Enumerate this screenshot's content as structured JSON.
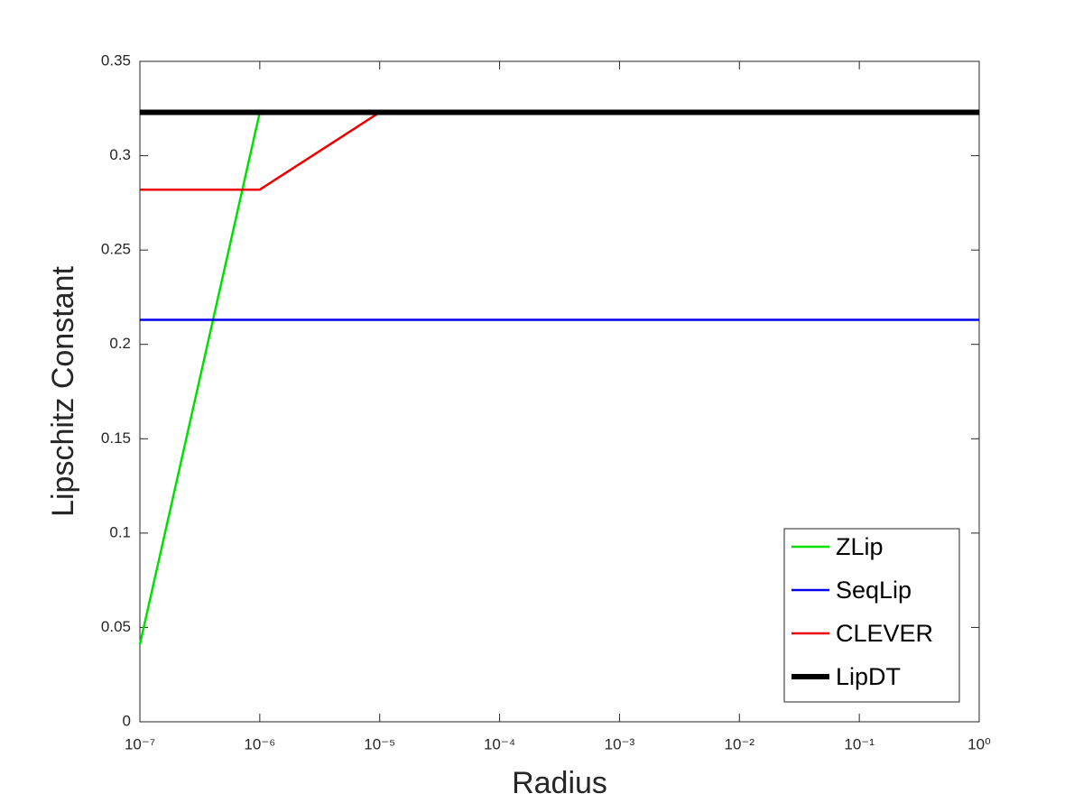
{
  "chart_data": {
    "type": "line",
    "xlabel": "Radius",
    "ylabel": "Lipschitz Constant",
    "xscale": "log",
    "x": [
      1e-07,
      1e-06,
      1e-05,
      0.0001,
      0.001,
      0.01,
      0.1,
      1
    ],
    "series": [
      {
        "name": "ZLip",
        "color": "#00e000",
        "width": 2.5,
        "values": [
          0.041,
          0.323,
          0.323,
          0.323,
          0.323,
          0.323,
          0.323,
          0.323
        ]
      },
      {
        "name": "SeqLip",
        "color": "#0000ee",
        "width": 2.5,
        "values": [
          0.213,
          0.213,
          0.213,
          0.213,
          0.213,
          0.213,
          0.213,
          0.213
        ]
      },
      {
        "name": "CLEVER",
        "color": "#ee0000",
        "width": 2.5,
        "values": [
          0.282,
          0.282,
          0.323,
          0.323,
          0.323,
          0.323,
          0.323,
          0.323
        ]
      },
      {
        "name": "LipDT",
        "color": "#000000",
        "width": 6,
        "values": [
          0.323,
          0.323,
          0.323,
          0.323,
          0.323,
          0.323,
          0.323,
          0.323
        ]
      }
    ],
    "xlim": [
      1e-07,
      1
    ],
    "xticks": [
      {
        "value": 1e-07,
        "label": "10⁻⁷"
      },
      {
        "value": 1e-06,
        "label": "10⁻⁶"
      },
      {
        "value": 1e-05,
        "label": "10⁻⁵"
      },
      {
        "value": 0.0001,
        "label": "10⁻⁴"
      },
      {
        "value": 0.001,
        "label": "10⁻³"
      },
      {
        "value": 0.01,
        "label": "10⁻²"
      },
      {
        "value": 0.1,
        "label": "10⁻¹"
      },
      {
        "value": 1,
        "label": "10⁰"
      }
    ],
    "ylim": [
      0,
      0.35
    ],
    "yticks": [
      0,
      0.05,
      0.1,
      0.15,
      0.2,
      0.25,
      0.3,
      0.35
    ],
    "legend": "lower right"
  }
}
